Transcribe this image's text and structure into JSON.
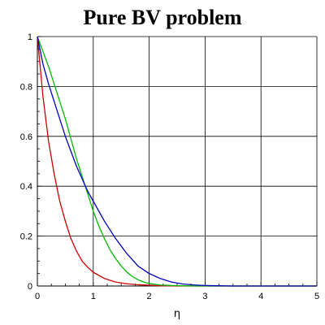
{
  "chart_data": {
    "type": "line",
    "title": "Pure BV problem",
    "xlabel": "η",
    "ylabel": "",
    "xlim": [
      0,
      5
    ],
    "ylim": [
      0,
      1
    ],
    "xticks": [
      "0",
      "1",
      "2",
      "3",
      "4",
      "5"
    ],
    "yticks": [
      "0",
      "0.2",
      "0.4",
      "0.6",
      "0.8",
      "1"
    ],
    "grid": true,
    "series": [
      {
        "color": "#cc0000",
        "x": [
          0,
          0.1,
          0.2,
          0.3,
          0.4,
          0.5,
          0.6,
          0.7,
          0.8,
          0.9,
          1.0,
          1.2,
          1.4,
          1.6,
          1.8,
          2.0,
          2.2,
          2.5,
          3,
          4,
          5
        ],
        "y": [
          1,
          0.76,
          0.58,
          0.45,
          0.34,
          0.26,
          0.19,
          0.14,
          0.1,
          0.075,
          0.055,
          0.03,
          0.016,
          0.009,
          0.005,
          0.003,
          0.001,
          0,
          0,
          0,
          0
        ]
      },
      {
        "color": "#00bb00",
        "x": [
          0,
          0.1,
          0.2,
          0.3,
          0.4,
          0.5,
          0.6,
          0.7,
          0.8,
          0.9,
          1.0,
          1.1,
          1.2,
          1.3,
          1.4,
          1.5,
          1.6,
          1.7,
          1.8,
          1.9,
          2.0,
          2.2,
          2.4,
          2.6,
          2.8,
          3,
          4,
          5
        ],
        "y": [
          1,
          0.94,
          0.88,
          0.81,
          0.74,
          0.67,
          0.59,
          0.51,
          0.44,
          0.37,
          0.3,
          0.24,
          0.19,
          0.145,
          0.11,
          0.08,
          0.056,
          0.038,
          0.025,
          0.016,
          0.01,
          0.004,
          0.002,
          0.001,
          0,
          0,
          0,
          0
        ]
      },
      {
        "color": "#0000bb",
        "x": [
          0,
          0.1,
          0.2,
          0.3,
          0.4,
          0.5,
          0.6,
          0.7,
          0.8,
          0.9,
          1.0,
          1.2,
          1.4,
          1.6,
          1.8,
          2.0,
          2.2,
          2.4,
          2.6,
          2.8,
          3.0,
          3.5,
          4,
          5
        ],
        "y": [
          1,
          0.89,
          0.81,
          0.74,
          0.67,
          0.6,
          0.54,
          0.48,
          0.43,
          0.38,
          0.34,
          0.26,
          0.19,
          0.13,
          0.08,
          0.05,
          0.03,
          0.016,
          0.008,
          0.004,
          0.002,
          0,
          0,
          0
        ]
      }
    ]
  }
}
